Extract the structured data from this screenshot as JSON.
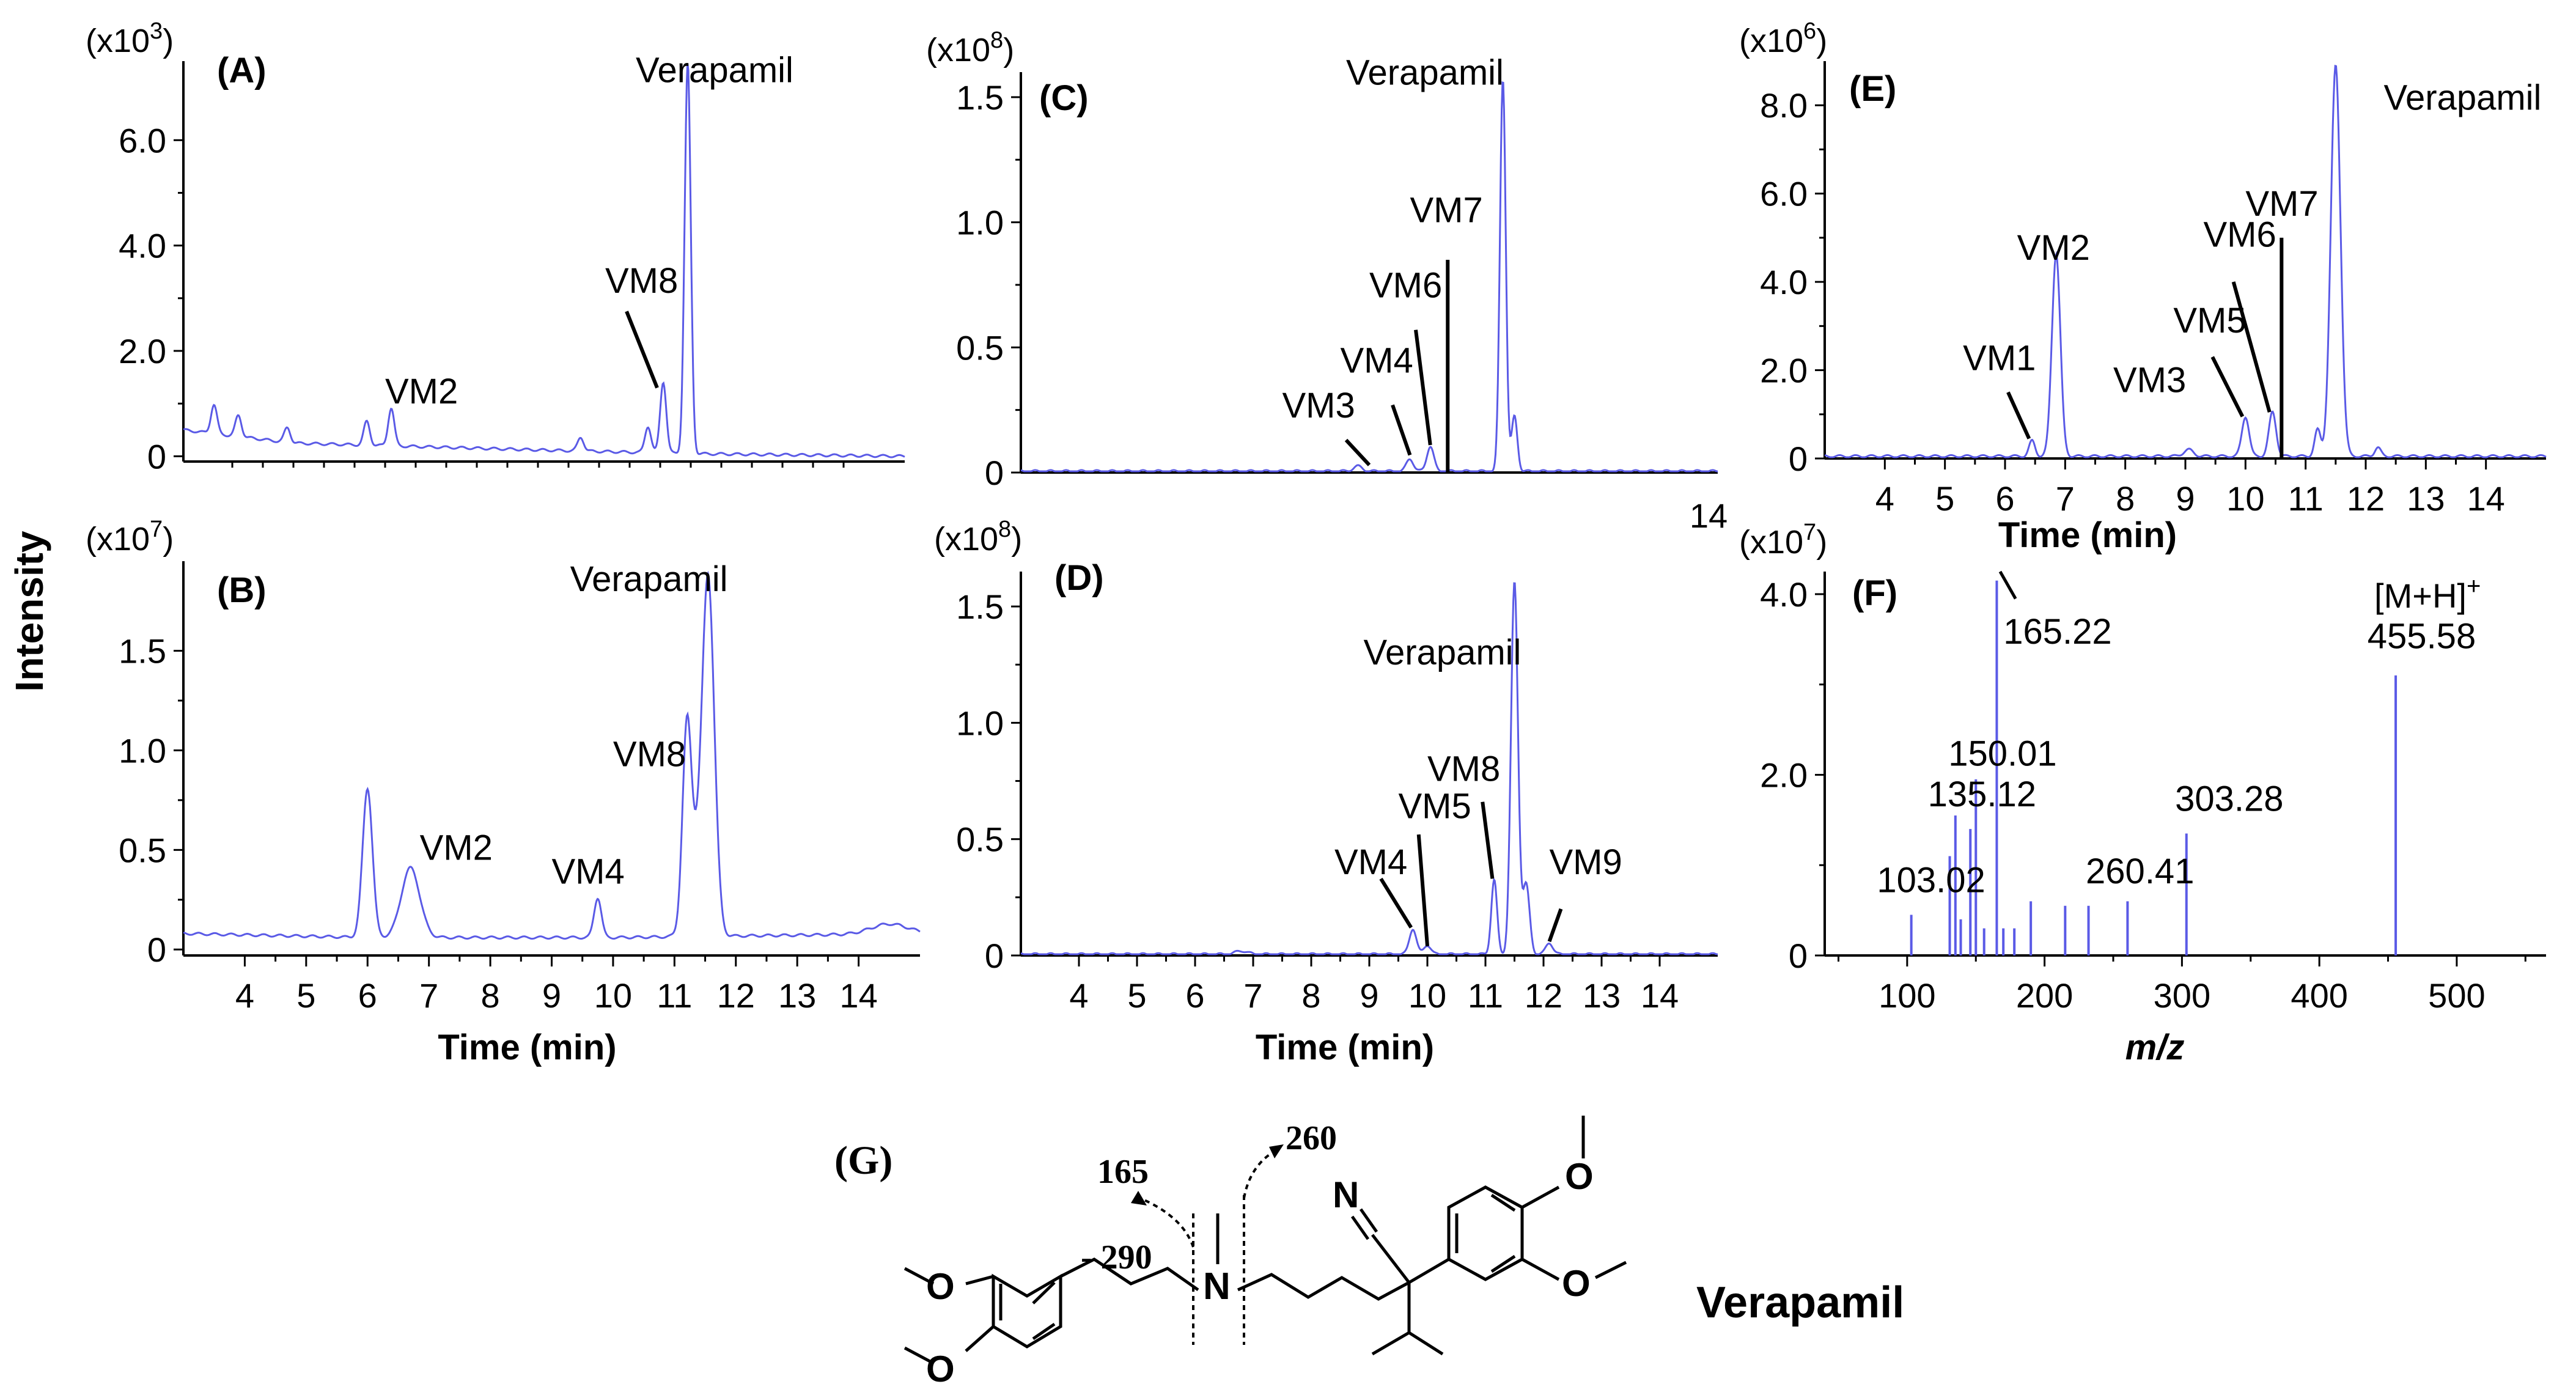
{
  "ylabel_shared": "Intensity",
  "colors": {
    "trace": "#5a5ae6",
    "axis": "#000000"
  },
  "chart_data": [
    {
      "id": "A",
      "type": "line",
      "panel_label": "(A)",
      "scale_base": "(x10",
      "scale_exp": "3",
      "scale_close": ")",
      "xlim": [
        3.2,
        15.0
      ],
      "ylim": [
        -0.1,
        7.5
      ],
      "yticks": [
        "0",
        "2.0",
        "4.0",
        "6.0"
      ],
      "ytick_values": [
        0,
        2,
        4,
        6
      ],
      "xticks": [],
      "xtick_values": [],
      "xlabel": "",
      "peaks": [
        {
          "x": 3.7,
          "h": 0.55,
          "w": 0.05
        },
        {
          "x": 4.1,
          "h": 0.4,
          "w": 0.05
        },
        {
          "x": 4.9,
          "h": 0.28,
          "w": 0.05
        },
        {
          "x": 6.2,
          "h": 0.45,
          "w": 0.05
        },
        {
          "x": 6.6,
          "h": 0.72,
          "w": 0.05
        },
        {
          "x": 9.7,
          "h": 0.26,
          "w": 0.05
        },
        {
          "x": 10.8,
          "h": 0.5,
          "w": 0.05
        },
        {
          "x": 11.05,
          "h": 1.35,
          "w": 0.05
        },
        {
          "x": 11.45,
          "h": 7.4,
          "w": 0.05
        }
      ],
      "baseline": [
        [
          3.2,
          0.5
        ],
        [
          5.0,
          0.25
        ],
        [
          9.0,
          0.12
        ],
        [
          11.5,
          0.05
        ],
        [
          15.0,
          0.0
        ]
      ],
      "annotations": [
        {
          "text": "VM2",
          "tx": 6.5,
          "ty": 1.0,
          "lx1": null,
          "ly1": null,
          "lx2": null,
          "ly2": null
        },
        {
          "text": "VM8",
          "tx": 10.1,
          "ty": 3.1,
          "lx1": 10.45,
          "ly1": 2.75,
          "lx2": 10.95,
          "ly2": 1.3
        },
        {
          "text": "Verapamil",
          "tx": 10.6,
          "ty": 7.1,
          "lx1": null,
          "ly1": null,
          "lx2": null,
          "ly2": null
        }
      ]
    },
    {
      "id": "B",
      "type": "line",
      "panel_label": "(B)",
      "scale_base": "(x10",
      "scale_exp": "7",
      "scale_close": ")",
      "xlim": [
        3.0,
        15.0
      ],
      "ylim": [
        -0.03,
        1.95
      ],
      "yticks": [
        "0",
        "0.5",
        "1.0",
        "1.5"
      ],
      "ytick_values": [
        0,
        0.5,
        1.0,
        1.5
      ],
      "xticks": [
        "4",
        "5",
        "6",
        "7",
        "8",
        "9",
        "10",
        "11",
        "12",
        "13",
        "14"
      ],
      "xtick_values": [
        4,
        5,
        6,
        7,
        8,
        9,
        10,
        11,
        12,
        13,
        14
      ],
      "xlabel": "Time (min)",
      "peaks": [
        {
          "x": 6.0,
          "h": 0.75,
          "w": 0.08
        },
        {
          "x": 6.7,
          "h": 0.35,
          "w": 0.15
        },
        {
          "x": 9.75,
          "h": 0.2,
          "w": 0.06
        },
        {
          "x": 11.2,
          "h": 0.85,
          "w": 0.07
        },
        {
          "x": 11.55,
          "h": 1.78,
          "w": 0.1
        },
        {
          "x": 11.3,
          "h": 0.35,
          "w": 0.12
        },
        {
          "x": 14.5,
          "h": 0.05,
          "w": 0.3
        }
      ],
      "baseline": [
        [
          3.0,
          0.08
        ],
        [
          6.0,
          0.06
        ],
        [
          10.0,
          0.06
        ],
        [
          12.5,
          0.07
        ],
        [
          15.0,
          0.08
        ]
      ],
      "annotations": [
        {
          "text": "VM2",
          "tx": 6.85,
          "ty": 0.45,
          "lx1": null,
          "ly1": null,
          "lx2": null,
          "ly2": null
        },
        {
          "text": "VM4",
          "tx": 9.0,
          "ty": 0.33,
          "lx1": null,
          "ly1": null,
          "lx2": null,
          "ly2": null
        },
        {
          "text": "VM8",
          "tx": 10.0,
          "ty": 0.92,
          "lx1": null,
          "ly1": null,
          "lx2": null,
          "ly2": null
        },
        {
          "text": "Verapamil",
          "tx": 9.3,
          "ty": 1.8,
          "lx1": null,
          "ly1": null,
          "lx2": null,
          "ly2": null
        }
      ]
    },
    {
      "id": "C",
      "type": "line",
      "panel_label": "(C)",
      "scale_base": "(x10",
      "scale_exp": "8",
      "scale_close": ")",
      "xlim": [
        3.0,
        15.0
      ],
      "ylim": [
        0,
        1.6
      ],
      "yticks": [
        "0",
        "0.5",
        "1.0",
        "1.5"
      ],
      "ytick_values": [
        0,
        0.5,
        1.0,
        1.5
      ],
      "xticks": [
        "14"
      ],
      "xtick_values": [
        14
      ],
      "xlabel": "",
      "peaks": [
        {
          "x": 8.8,
          "h": 0.02,
          "w": 0.08
        },
        {
          "x": 9.7,
          "h": 0.05,
          "w": 0.06
        },
        {
          "x": 10.05,
          "h": 0.1,
          "w": 0.06
        },
        {
          "x": 11.3,
          "h": 1.57,
          "w": 0.05
        },
        {
          "x": 11.5,
          "h": 0.22,
          "w": 0.05
        }
      ],
      "baseline": [
        [
          3.0,
          0.005
        ],
        [
          15.0,
          0.005
        ]
      ],
      "annotations": [
        {
          "text": "VM3",
          "tx": 7.5,
          "ty": 0.22,
          "lx1": 8.6,
          "ly1": 0.13,
          "lx2": 9.0,
          "ly2": 0.03
        },
        {
          "text": "VM4",
          "tx": 8.5,
          "ty": 0.4,
          "lx1": 9.4,
          "ly1": 0.27,
          "lx2": 9.7,
          "ly2": 0.07
        },
        {
          "text": "VM6",
          "tx": 9.0,
          "ty": 0.7,
          "lx1": 9.8,
          "ly1": 0.57,
          "lx2": 10.05,
          "ly2": 0.11
        },
        {
          "text": "VM7",
          "tx": 9.7,
          "ty": 1.0,
          "lx1": 10.35,
          "ly1": 0.85,
          "lx2": 10.35,
          "ly2": 0.0
        },
        {
          "text": "Verapamil",
          "tx": 8.6,
          "ty": 1.55,
          "lx1": null,
          "ly1": null,
          "lx2": null,
          "ly2": null
        }
      ]
    },
    {
      "id": "D",
      "type": "line",
      "panel_label": "(D)",
      "scale_base": "(x10",
      "scale_exp": "8",
      "scale_close": ")",
      "xlim": [
        3.0,
        15.0
      ],
      "ylim": [
        0,
        1.65
      ],
      "yticks": [
        "0",
        "0.5",
        "1.0",
        "1.5"
      ],
      "ytick_values": [
        0,
        0.5,
        1.0,
        1.5
      ],
      "xticks": [
        "4",
        "5",
        "6",
        "7",
        "8",
        "9",
        "10",
        "11",
        "12",
        "13",
        "14"
      ],
      "xtick_values": [
        4,
        5,
        6,
        7,
        8,
        9,
        10,
        11,
        12,
        13,
        14
      ],
      "xlabel": "Time (min)",
      "peaks": [
        {
          "x": 6.8,
          "h": 0.015,
          "w": 0.1
        },
        {
          "x": 9.75,
          "h": 0.11,
          "w": 0.06
        },
        {
          "x": 10.0,
          "h": 0.04,
          "w": 0.06
        },
        {
          "x": 11.15,
          "h": 0.32,
          "w": 0.05
        },
        {
          "x": 11.5,
          "h": 1.6,
          "w": 0.06
        },
        {
          "x": 11.7,
          "h": 0.3,
          "w": 0.06
        },
        {
          "x": 12.1,
          "h": 0.05,
          "w": 0.06
        }
      ],
      "baseline": [
        [
          3.0,
          0.005
        ],
        [
          15.0,
          0.005
        ]
      ],
      "annotations": [
        {
          "text": "VM4",
          "tx": 8.4,
          "ty": 0.35,
          "lx1": 9.2,
          "ly1": 0.33,
          "lx2": 9.72,
          "ly2": 0.12
        },
        {
          "text": "VM5",
          "tx": 9.5,
          "ty": 0.59,
          "lx1": 9.85,
          "ly1": 0.52,
          "lx2": 10.0,
          "ly2": 0.04
        },
        {
          "text": "VM8",
          "tx": 10.0,
          "ty": 0.75,
          "lx1": 10.95,
          "ly1": 0.66,
          "lx2": 11.12,
          "ly2": 0.33
        },
        {
          "text": "VM9",
          "tx": 12.1,
          "ty": 0.35,
          "lx1": 12.3,
          "ly1": 0.2,
          "lx2": 12.1,
          "ly2": 0.06
        },
        {
          "text": "Verapamil",
          "tx": 8.9,
          "ty": 1.25,
          "lx1": null,
          "ly1": null,
          "lx2": null,
          "ly2": null
        }
      ]
    },
    {
      "id": "E",
      "type": "line",
      "panel_label": "(E)",
      "scale_base": "(x10",
      "scale_exp": "6",
      "scale_close": ")",
      "xlim": [
        3.0,
        15.0
      ],
      "ylim": [
        0,
        9.0
      ],
      "yticks": [
        "0",
        "2.0",
        "4.0",
        "6.0",
        "8.0"
      ],
      "ytick_values": [
        0,
        2,
        4,
        6,
        8
      ],
      "xticks": [
        "4",
        "5",
        "6",
        "7",
        "8",
        "9",
        "10",
        "11",
        "12",
        "13",
        "14"
      ],
      "xtick_values": [
        4,
        5,
        6,
        7,
        8,
        9,
        10,
        11,
        12,
        13,
        14
      ],
      "xlabel": "Time (min)",
      "peaks": [
        {
          "x": 6.45,
          "h": 0.35,
          "w": 0.05
        },
        {
          "x": 6.85,
          "h": 4.6,
          "w": 0.07
        },
        {
          "x": 9.05,
          "h": 0.15,
          "w": 0.08
        },
        {
          "x": 10.0,
          "h": 0.9,
          "w": 0.06
        },
        {
          "x": 10.45,
          "h": 1.0,
          "w": 0.06
        },
        {
          "x": 11.2,
          "h": 0.6,
          "w": 0.05
        },
        {
          "x": 11.5,
          "h": 8.85,
          "w": 0.08
        },
        {
          "x": 12.2,
          "h": 0.2,
          "w": 0.05
        }
      ],
      "baseline": [
        [
          3.0,
          0.05
        ],
        [
          15.0,
          0.05
        ]
      ],
      "annotations": [
        {
          "text": "VM1",
          "tx": 5.3,
          "ty": 2.0,
          "lx1": 6.05,
          "ly1": 1.5,
          "lx2": 6.4,
          "ly2": 0.45
        },
        {
          "text": "VM2",
          "tx": 6.2,
          "ty": 4.5,
          "lx1": null,
          "ly1": null,
          "lx2": null,
          "ly2": null
        },
        {
          "text": "VM3",
          "tx": 7.8,
          "ty": 1.5,
          "lx1": null,
          "ly1": null,
          "lx2": null,
          "ly2": null
        },
        {
          "text": "VM5",
          "tx": 8.8,
          "ty": 2.85,
          "lx1": 9.45,
          "ly1": 2.3,
          "lx2": 9.95,
          "ly2": 0.95
        },
        {
          "text": "VM6",
          "tx": 9.3,
          "ty": 4.8,
          "lx1": 9.8,
          "ly1": 4.0,
          "lx2": 10.4,
          "ly2": 1.05
        },
        {
          "text": "VM7",
          "tx": 10.0,
          "ty": 5.5,
          "lx1": 10.6,
          "ly1": 5.0,
          "lx2": 10.6,
          "ly2": 0.0
        },
        {
          "text": "Verapamil",
          "tx": 12.3,
          "ty": 7.9,
          "lx1": null,
          "ly1": null,
          "lx2": null,
          "ly2": null
        }
      ]
    },
    {
      "id": "F",
      "type": "bar",
      "panel_label": "(F)",
      "scale_base": "(x10",
      "scale_exp": "7",
      "scale_close": ")",
      "xlim": [
        40,
        565
      ],
      "ylim": [
        0,
        4.25
      ],
      "yticks": [
        "0",
        "2.0",
        "4.0"
      ],
      "ytick_values": [
        0,
        2,
        4
      ],
      "xticks": [
        "100",
        "200",
        "300",
        "400",
        "500"
      ],
      "xtick_values": [
        100,
        200,
        300,
        400,
        500
      ],
      "xlabel": "m/z",
      "bars": [
        {
          "mz": 103.02,
          "v": 0.45
        },
        {
          "mz": 131.0,
          "v": 1.1
        },
        {
          "mz": 135.12,
          "v": 1.55
        },
        {
          "mz": 139.0,
          "v": 0.4
        },
        {
          "mz": 146.0,
          "v": 1.4
        },
        {
          "mz": 150.01,
          "v": 1.95
        },
        {
          "mz": 156.0,
          "v": 0.3
        },
        {
          "mz": 165.22,
          "v": 4.15
        },
        {
          "mz": 170.0,
          "v": 0.3
        },
        {
          "mz": 178.0,
          "v": 0.3
        },
        {
          "mz": 190.0,
          "v": 0.6
        },
        {
          "mz": 215.0,
          "v": 0.55
        },
        {
          "mz": 232.0,
          "v": 0.55
        },
        {
          "mz": 260.41,
          "v": 0.6
        },
        {
          "mz": 303.28,
          "v": 1.35
        },
        {
          "mz": 455.58,
          "v": 3.1
        }
      ],
      "annotations": [
        {
          "text": "103.02",
          "tx": 78,
          "ty": 0.7
        },
        {
          "text": "135.12",
          "tx": 115,
          "ty": 1.65
        },
        {
          "text": "150.01",
          "tx": 130,
          "ty": 2.1
        },
        {
          "text": "165.22",
          "tx": 170,
          "ty": 3.45
        },
        {
          "text": "260.41",
          "tx": 230,
          "ty": 0.8
        },
        {
          "text": "303.28",
          "tx": 295,
          "ty": 1.6
        },
        {
          "text": "455.58",
          "tx": 435,
          "ty": 3.4
        }
      ],
      "precursor_label": "[M+H]",
      "precursor_sup": "+"
    }
  ],
  "structure": {
    "panel_label": "(G)",
    "name": "Verapamil",
    "fragment_165": "165",
    "fragment_260": "260",
    "neutral_loss": "- 290",
    "atom_N_amine": "N",
    "atom_N_nitrile": "N",
    "atom_O": "O"
  }
}
